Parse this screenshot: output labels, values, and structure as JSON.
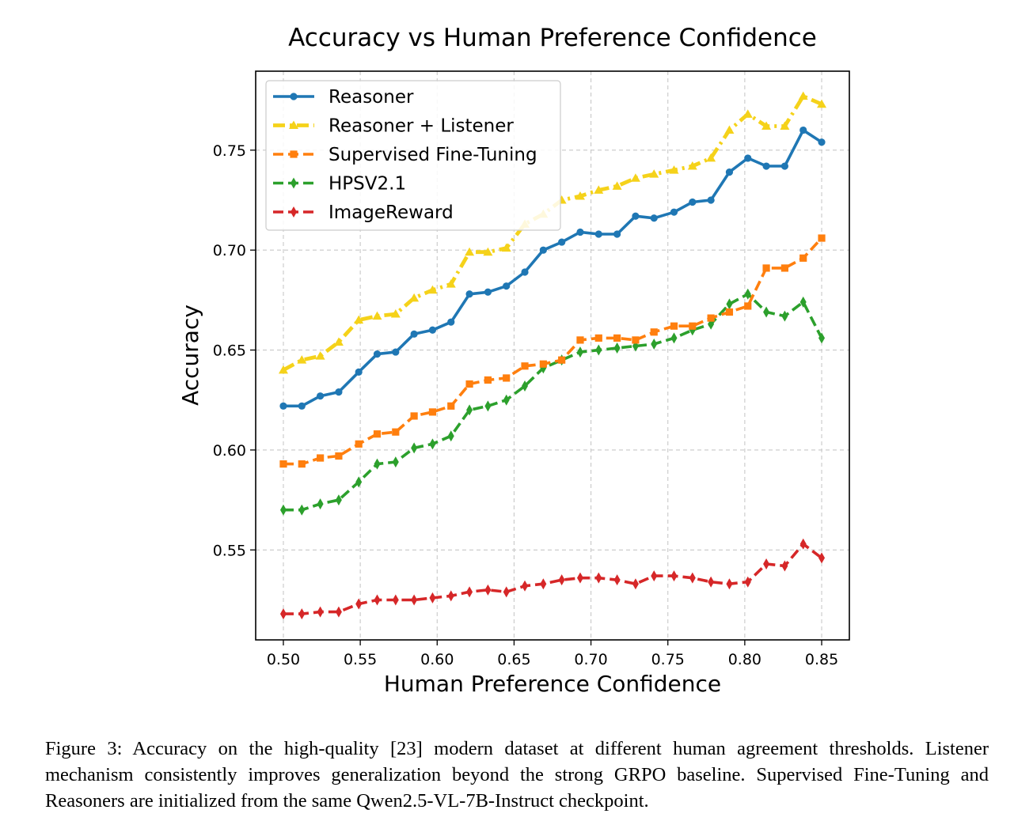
{
  "figure": {
    "caption": "Figure 3: Accuracy on the high-quality [23] modern dataset at different human agreement thresholds. Listener mechanism consistently improves generalization beyond the strong GRPO baseline. Supervised Fine-Tuning and Reasoners are initialized from the same Qwen2.5-VL-7B-Instruct checkpoint."
  },
  "chart_data": {
    "type": "line",
    "title": "Accuracy vs Human Preference Confidence",
    "xlabel": "Human Preference Confidence",
    "ylabel": "Accuracy",
    "xlim": [
      0.482,
      0.868
    ],
    "ylim": [
      0.505,
      0.7895
    ],
    "xticks": [
      0.5,
      0.55,
      0.6,
      0.65,
      0.7,
      0.75,
      0.8,
      0.85
    ],
    "xtick_labels": [
      "0.50",
      "0.55",
      "0.60",
      "0.65",
      "0.70",
      "0.75",
      "0.80",
      "0.85"
    ],
    "yticks": [
      0.55,
      0.6,
      0.65,
      0.7,
      0.75
    ],
    "ytick_labels": [
      "0.55",
      "0.60",
      "0.65",
      "0.70",
      "0.75"
    ],
    "grid": true,
    "legend_position": "upper-left",
    "x": [
      0.5,
      0.512,
      0.524,
      0.536,
      0.549,
      0.561,
      0.573,
      0.585,
      0.597,
      0.609,
      0.621,
      0.633,
      0.645,
      0.657,
      0.669,
      0.681,
      0.693,
      0.705,
      0.717,
      0.729,
      0.741,
      0.754,
      0.766,
      0.778,
      0.79,
      0.802,
      0.814,
      0.826,
      0.838,
      0.85
    ],
    "series": [
      {
        "name": "Reasoner",
        "color": "#1f77b4",
        "marker": "circle",
        "line_style": "solid",
        "values": [
          0.622,
          0.622,
          0.627,
          0.629,
          0.639,
          0.648,
          0.649,
          0.658,
          0.66,
          0.664,
          0.678,
          0.679,
          0.682,
          0.689,
          0.7,
          0.704,
          0.709,
          0.708,
          0.708,
          0.717,
          0.716,
          0.719,
          0.724,
          0.725,
          0.739,
          0.746,
          0.742,
          0.742,
          0.76,
          0.754
        ]
      },
      {
        "name": "Reasoner + Listener",
        "color": "#f5d21a",
        "marker": "triangle",
        "line_style": "dashdot",
        "values": [
          0.64,
          0.645,
          0.647,
          0.654,
          0.665,
          0.667,
          0.668,
          0.676,
          0.68,
          0.683,
          0.699,
          0.699,
          0.701,
          0.713,
          0.718,
          0.725,
          0.727,
          0.73,
          0.732,
          0.736,
          0.738,
          0.74,
          0.742,
          0.746,
          0.76,
          0.768,
          0.762,
          0.762,
          0.777,
          0.773
        ]
      },
      {
        "name": "Supervised Fine-Tuning",
        "color": "#ff7f0e",
        "marker": "square",
        "line_style": "dashed",
        "values": [
          0.593,
          0.593,
          0.596,
          0.597,
          0.603,
          0.608,
          0.609,
          0.617,
          0.619,
          0.622,
          0.633,
          0.635,
          0.636,
          0.642,
          0.643,
          0.645,
          0.655,
          0.656,
          0.656,
          0.655,
          0.659,
          0.662,
          0.662,
          0.666,
          0.669,
          0.672,
          0.691,
          0.691,
          0.696,
          0.706
        ]
      },
      {
        "name": "HPSV2.1",
        "color": "#2ca02c",
        "marker": "thin-diamond",
        "line_style": "dashed",
        "values": [
          0.57,
          0.57,
          0.573,
          0.575,
          0.584,
          0.593,
          0.594,
          0.601,
          0.603,
          0.607,
          0.62,
          0.622,
          0.625,
          0.632,
          0.641,
          0.645,
          0.649,
          0.65,
          0.651,
          0.652,
          0.653,
          0.656,
          0.66,
          0.663,
          0.673,
          0.678,
          0.669,
          0.667,
          0.674,
          0.656
        ]
      },
      {
        "name": "ImageReward",
        "color": "#d62728",
        "marker": "thin-diamond",
        "line_style": "dashed",
        "values": [
          0.518,
          0.518,
          0.519,
          0.519,
          0.523,
          0.525,
          0.525,
          0.525,
          0.526,
          0.527,
          0.529,
          0.53,
          0.529,
          0.532,
          0.533,
          0.535,
          0.536,
          0.536,
          0.535,
          0.533,
          0.537,
          0.537,
          0.536,
          0.534,
          0.533,
          0.534,
          0.543,
          0.542,
          0.553,
          0.546
        ]
      }
    ]
  }
}
